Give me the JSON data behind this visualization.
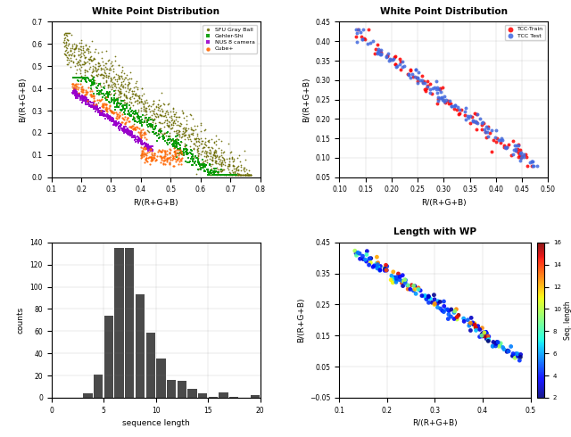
{
  "title_top_left": "White Point Distribution",
  "title_top_right": "White Point Distribution",
  "title_bottom_right": "Length with WP",
  "xlabel_top": "R/(R+G+B)",
  "ylabel_top_left": "B/(R+G+B)",
  "ylabel_top_right": "B/(R+G+B)",
  "xlabel_bottom_left": "sequence length",
  "ylabel_bottom_left": "counts",
  "xlabel_bottom_right": "R/(R+G+B)",
  "ylabel_bottom_right": "B/(R+G+B)",
  "datasets": {
    "SFU_Gray_Ball": {
      "color": "#6b6b00",
      "marker": "o",
      "size": 1.5,
      "label": "SFU Gray Ball"
    },
    "Gehler_Shi": {
      "color": "#009900",
      "marker": "s",
      "size": 1.5,
      "label": "Gehler-Shi"
    },
    "NUS_8_camera": {
      "color": "#9900cc",
      "marker": "s",
      "size": 1.5,
      "label": "NUS 8 camera"
    },
    "Cube_plus": {
      "color": "#ff6600",
      "marker": "o",
      "size": 2.5,
      "label": "Cube+"
    }
  },
  "hist_color": "#4a4a4a",
  "hist_bins": [
    3,
    4,
    5,
    6,
    7,
    8,
    9,
    10,
    11,
    12,
    13,
    14,
    15,
    16,
    17,
    18,
    19,
    20
  ],
  "hist_values": [
    4,
    21,
    74,
    135,
    135,
    93,
    59,
    35,
    16,
    15,
    8,
    4,
    1,
    5,
    1,
    0,
    2
  ],
  "xlim_tl": [
    0.1,
    0.8
  ],
  "ylim_tl": [
    0.0,
    0.7
  ],
  "xlim_tr": [
    0.1,
    0.5
  ],
  "ylim_tr": [
    0.05,
    0.45
  ],
  "xlim_bl": [
    0,
    20
  ],
  "ylim_bl": [
    0,
    140
  ],
  "xlim_br": [
    0.1,
    0.5
  ],
  "ylim_br": [
    -0.05,
    0.45
  ],
  "yticks_tl": [
    0,
    0.1,
    0.2,
    0.3,
    0.4,
    0.5,
    0.6,
    0.7
  ],
  "xticks_tl": [
    0.1,
    0.2,
    0.3,
    0.4,
    0.5,
    0.6,
    0.7,
    0.8
  ],
  "yticks_tr": [
    0.05,
    0.1,
    0.15,
    0.2,
    0.25,
    0.3,
    0.35,
    0.4,
    0.45
  ],
  "xticks_tr": [
    0.1,
    0.15,
    0.2,
    0.25,
    0.3,
    0.35,
    0.4,
    0.45,
    0.5
  ],
  "colorbar_label": "Seq. length",
  "colorbar_min": 2,
  "colorbar_max": 16
}
